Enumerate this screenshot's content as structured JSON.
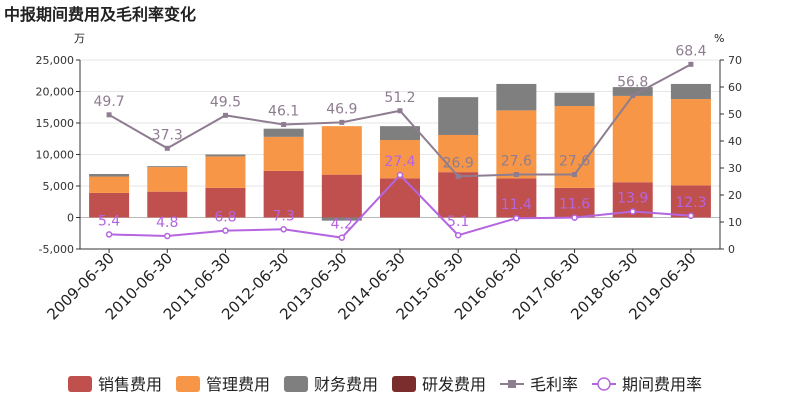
{
  "chart_data": {
    "type": "bar",
    "title": "中报期间费用及毛利率变化",
    "y_left_unit": "万",
    "y_right_unit": "%",
    "ylim_left": [
      -5000,
      25000
    ],
    "ylim_right": [
      0,
      70
    ],
    "yticks_left": [
      -5000,
      0,
      5000,
      10000,
      15000,
      20000,
      25000
    ],
    "yticks_left_labels": [
      "-5,000",
      "0",
      "5,000",
      "10,000",
      "15,000",
      "20,000",
      "25,000"
    ],
    "yticks_right": [
      0,
      10,
      20,
      30,
      40,
      50,
      60,
      70
    ],
    "categories": [
      "2009-06-30",
      "2010-06-30",
      "2011-06-30",
      "2012-06-30",
      "2013-06-30",
      "2014-06-30",
      "2015-06-30",
      "2016-06-30",
      "2017-06-30",
      "2018-06-30",
      "2019-06-30"
    ],
    "bar_series": [
      {
        "name": "销售费用",
        "color": "#c0504d",
        "values": [
          3900,
          4100,
          4700,
          7400,
          6800,
          6200,
          7200,
          6200,
          4700,
          5600,
          5100
        ]
      },
      {
        "name": "管理费用",
        "color": "#f79646",
        "values": [
          2600,
          3900,
          5000,
          5400,
          7700,
          6100,
          5900,
          10800,
          13000,
          13700,
          13700
        ]
      },
      {
        "name": "财务费用",
        "color": "#7f7f7f",
        "values": [
          400,
          150,
          300,
          1300,
          -500,
          2200,
          6000,
          4200,
          2100,
          1400,
          2400
        ]
      },
      {
        "name": "研发费用",
        "color": "#7b2c2c",
        "values": [
          0,
          0,
          0,
          0,
          0,
          0,
          0,
          0,
          0,
          0,
          0
        ]
      }
    ],
    "line_series": [
      {
        "name": "毛利率",
        "color": "#8e7d90",
        "marker": "square",
        "values": [
          49.7,
          37.3,
          49.5,
          46.1,
          46.9,
          51.2,
          26.9,
          27.6,
          27.6,
          56.8,
          68.4
        ],
        "labels": [
          "49.7",
          "37.3",
          "49.5",
          "46.1",
          "46.9",
          "51.2",
          "26.9",
          "27.6",
          "27.6",
          "56.8",
          "68.4"
        ]
      },
      {
        "name": "期间费用率",
        "color": "#b565e0",
        "marker": "circle",
        "values": [
          5.4,
          4.8,
          6.8,
          7.3,
          4.2,
          27.4,
          5.1,
          11.4,
          11.6,
          13.9,
          12.3
        ],
        "labels": [
          "5.4",
          "4.8",
          "6.8",
          "7.3",
          "4.2",
          "27.4",
          "5.1",
          "11.4",
          "11.6",
          "13.9",
          "12.3"
        ]
      }
    ],
    "legend_position": "bottom"
  }
}
